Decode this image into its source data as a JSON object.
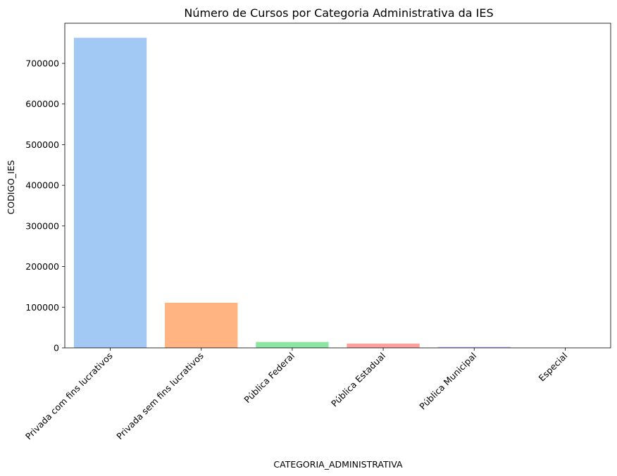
{
  "chart_data": {
    "type": "bar",
    "title": "Número de Cursos por Categoria Administrativa da IES",
    "xlabel": "CATEGORIA_ADMINISTRATIVA",
    "ylabel": "CODIGO_IES",
    "categories": [
      "Privada com fins lucrativos",
      "Privada sem fins lucrativos",
      "Pública Federal",
      "Pública Estadual",
      "Pública Municipal",
      "Especial"
    ],
    "values": [
      763000,
      111000,
      14500,
      10500,
      2500,
      300
    ],
    "colors": [
      "#a1c9f4",
      "#ffb482",
      "#8de5a1",
      "#ff9f9b",
      "#d0bbff",
      "#debb9b"
    ],
    "yticks": [
      0,
      100000,
      200000,
      300000,
      400000,
      500000,
      600000,
      700000
    ],
    "ylim": [
      0,
      800000
    ],
    "grid": false,
    "x_tick_rotation": 45
  }
}
